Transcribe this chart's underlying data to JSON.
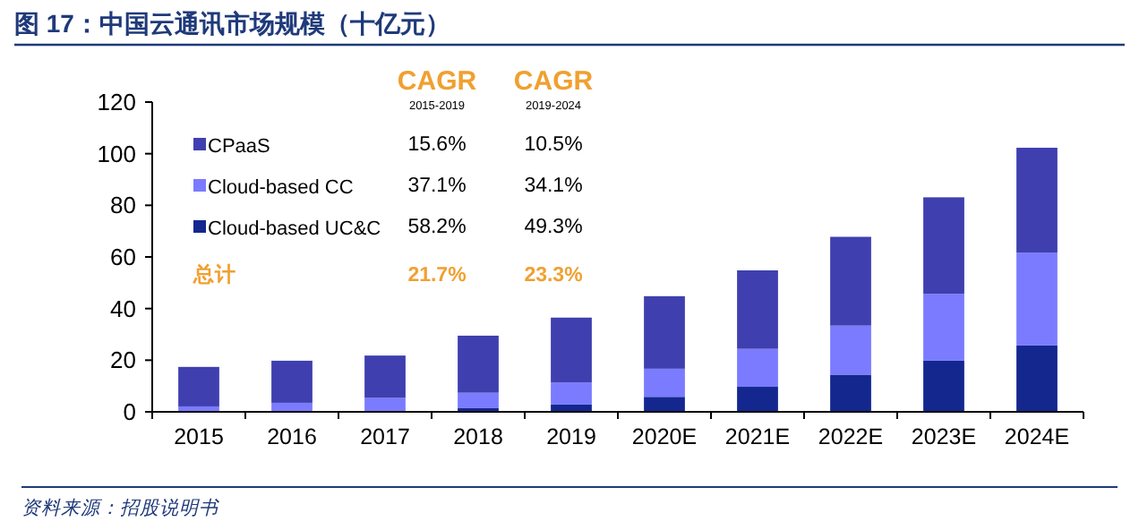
{
  "chart_data": {
    "type": "bar",
    "title": "图 17：中国云通讯市场规模（十亿元）",
    "categories": [
      "2015",
      "2016",
      "2017",
      "2018",
      "2019",
      "2020E",
      "2021E",
      "2022E",
      "2023E",
      "2024E"
    ],
    "stacked": true,
    "series": [
      {
        "name": "Cloud-based UC&C",
        "color": "#13278f",
        "values": [
          null,
          null,
          null,
          1.4,
          2.8,
          5.8,
          9.7,
          14.4,
          19.8,
          25.7
        ]
      },
      {
        "name": "Cloud-based CC",
        "color": "#7b7bff",
        "values": [
          2.1,
          3.5,
          5.4,
          6.0,
          8.6,
          10.9,
          14.7,
          19.0,
          25.9,
          36.0
        ]
      },
      {
        "name": "CPaaS",
        "color": "#3f3faf",
        "values": [
          15.3,
          16.3,
          16.4,
          22.1,
          25.1,
          28.1,
          30.4,
          34.4,
          37.4,
          40.6
        ]
      }
    ],
    "ylim": [
      0,
      120
    ],
    "yticks": [
      0,
      20,
      40,
      60,
      80,
      100,
      120
    ],
    "legend": "top left",
    "grid": false,
    "annotations": [
      "CAGR",
      "2015-2019",
      "CAGR",
      "2019-2024",
      "58.2%",
      "49.3%",
      "37.1%",
      "34.1%",
      "15.6%",
      "10.5%",
      "总计",
      "21.7%",
      "23.3%",
      "资料来源：招股说明书"
    ]
  }
}
